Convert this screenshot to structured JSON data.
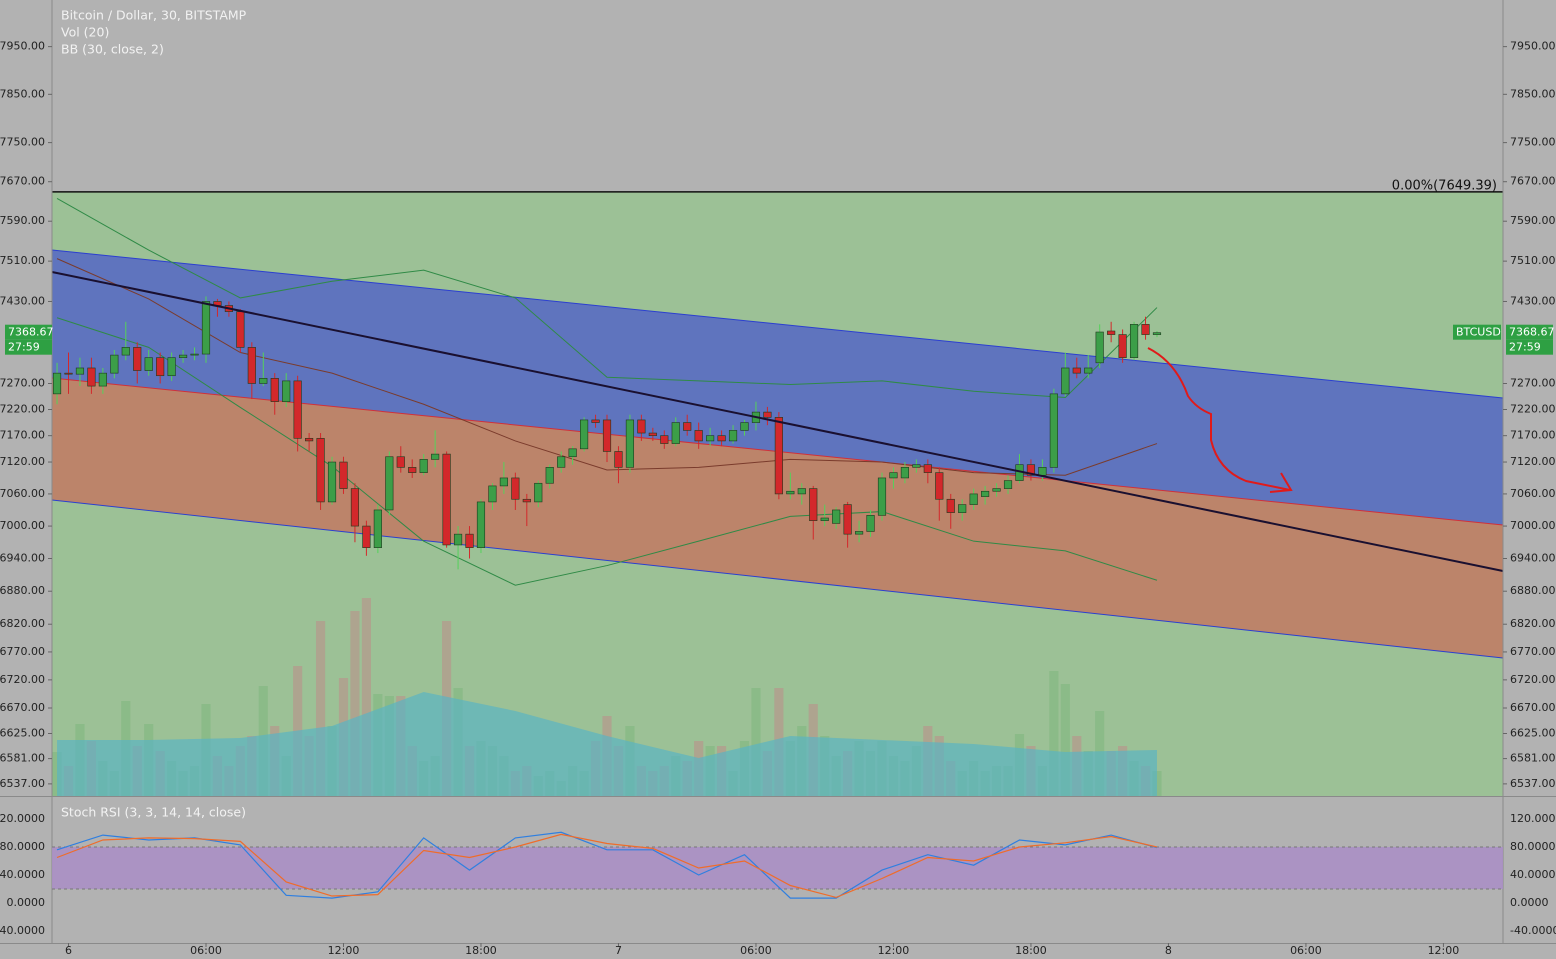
{
  "chart_data": [
    {
      "type": "candlestick",
      "title": "Bitcoin / Dollar, 30, BITSTAMP",
      "indicators": [
        "Vol (20)",
        "BB (30, close, 2)"
      ],
      "log": true,
      "ylim": [
        6516,
        8049
      ],
      "yticks": [
        {
          "value": 7950,
          "label": "7950.00"
        },
        {
          "value": 7850,
          "label": "7850.00"
        },
        {
          "value": 7750,
          "label": "7750.00"
        },
        {
          "value": 7670,
          "label": "7670.00"
        },
        {
          "value": 7590,
          "label": "7590.00"
        },
        {
          "value": 7510,
          "label": "7510.00"
        },
        {
          "value": 7430,
          "label": "7430.00"
        },
        {
          "value": 7270,
          "label": "7270.00"
        },
        {
          "value": 7220,
          "label": "7220.00"
        },
        {
          "value": 7170,
          "label": "7170.00"
        },
        {
          "value": 7120,
          "label": "7120.00"
        },
        {
          "value": 7060,
          "label": "7060.00"
        },
        {
          "value": 7000,
          "label": "7000.00"
        },
        {
          "value": 6940,
          "label": "6940.00"
        },
        {
          "value": 6880,
          "label": "6880.00"
        },
        {
          "value": 6820,
          "label": "6820.00"
        },
        {
          "value": 6770,
          "label": "6770.00"
        },
        {
          "value": 6720,
          "label": "6720.00"
        },
        {
          "value": 6670,
          "label": "6670.00"
        },
        {
          "value": 6625,
          "label": "6625.00"
        },
        {
          "value": 6581,
          "label": "6581.00"
        },
        {
          "value": 6537,
          "label": "6537.00"
        }
      ],
      "xlim": [
        -0.44,
        126.2
      ],
      "xticks": [
        {
          "value": 1,
          "label": "6"
        },
        {
          "value": 13,
          "label": "06:00"
        },
        {
          "value": 25,
          "label": "12:00"
        },
        {
          "value": 37,
          "label": "18:00"
        },
        {
          "value": 49,
          "label": "7"
        },
        {
          "value": 61,
          "label": "06:00"
        },
        {
          "value": 73,
          "label": "12:00"
        },
        {
          "value": 85,
          "label": "18:00"
        },
        {
          "value": 97,
          "label": "8"
        },
        {
          "value": 109,
          "label": "06:00"
        },
        {
          "value": 121,
          "label": "12:00"
        }
      ],
      "up_color": "#3c9e48",
      "down_color": "#d3282b",
      "candles": [
        [
          7250,
          7310,
          7230,
          7290
        ],
        [
          7290,
          7330,
          7250,
          7288
        ],
        [
          7288,
          7320,
          7265,
          7300
        ],
        [
          7300,
          7320,
          7250,
          7265
        ],
        [
          7265,
          7300,
          7250,
          7290
        ],
        [
          7290,
          7335,
          7280,
          7325
        ],
        [
          7325,
          7390,
          7315,
          7340
        ],
        [
          7340,
          7350,
          7270,
          7295
        ],
        [
          7295,
          7335,
          7285,
          7320
        ],
        [
          7320,
          7330,
          7270,
          7285
        ],
        [
          7285,
          7330,
          7275,
          7320
        ],
        [
          7320,
          7335,
          7310,
          7325
        ],
        [
          7325,
          7340,
          7315,
          7327
        ],
        [
          7327,
          7440,
          7310,
          7430
        ],
        [
          7430,
          7435,
          7400,
          7422
        ],
        [
          7422,
          7430,
          7400,
          7410
        ],
        [
          7410,
          7415,
          7330,
          7340
        ],
        [
          7340,
          7350,
          7240,
          7270
        ],
        [
          7270,
          7330,
          7265,
          7280
        ],
        [
          7280,
          7290,
          7210,
          7235
        ],
        [
          7235,
          7290,
          7225,
          7275
        ],
        [
          7275,
          7285,
          7140,
          7165
        ],
        [
          7165,
          7175,
          7140,
          7160
        ],
        [
          7165,
          7175,
          7030,
          7045
        ],
        [
          7045,
          7130,
          7040,
          7120
        ],
        [
          7120,
          7130,
          7060,
          7070
        ],
        [
          7070,
          7080,
          6970,
          7000
        ],
        [
          7000,
          7010,
          6945,
          6960
        ],
        [
          6960,
          7040,
          6950,
          7030
        ],
        [
          7030,
          7140,
          7020,
          7130
        ],
        [
          7130,
          7150,
          7100,
          7110
        ],
        [
          7110,
          7125,
          7090,
          7100
        ],
        [
          7100,
          7135,
          7095,
          7125
        ],
        [
          7125,
          7180,
          7110,
          7135
        ],
        [
          7135,
          7140,
          6960,
          6965
        ],
        [
          6965,
          7000,
          6920,
          6985
        ],
        [
          6985,
          7000,
          6940,
          6960
        ],
        [
          6960,
          7050,
          6950,
          7045
        ],
        [
          7045,
          7080,
          7030,
          7075
        ],
        [
          7075,
          7120,
          7060,
          7090
        ],
        [
          7090,
          7100,
          7030,
          7050
        ],
        [
          7050,
          7060,
          7000,
          7045
        ],
        [
          7045,
          7085,
          7035,
          7080
        ],
        [
          7080,
          7115,
          7070,
          7110
        ],
        [
          7110,
          7140,
          7100,
          7130
        ],
        [
          7130,
          7150,
          7115,
          7145
        ],
        [
          7145,
          7205,
          7140,
          7200
        ],
        [
          7200,
          7210,
          7185,
          7195
        ],
        [
          7200,
          7210,
          7120,
          7140
        ],
        [
          7140,
          7150,
          7080,
          7110
        ],
        [
          7110,
          7210,
          7100,
          7200
        ],
        [
          7200,
          7210,
          7160,
          7175
        ],
        [
          7175,
          7185,
          7160,
          7170
        ],
        [
          7170,
          7180,
          7145,
          7155
        ],
        [
          7155,
          7205,
          7150,
          7195
        ],
        [
          7195,
          7210,
          7170,
          7180
        ],
        [
          7180,
          7195,
          7145,
          7160
        ],
        [
          7160,
          7185,
          7150,
          7170
        ],
        [
          7170,
          7180,
          7150,
          7160
        ],
        [
          7160,
          7190,
          7155,
          7180
        ],
        [
          7180,
          7200,
          7170,
          7195
        ],
        [
          7195,
          7235,
          7180,
          7215
        ],
        [
          7215,
          7225,
          7190,
          7205
        ],
        [
          7205,
          7215,
          7050,
          7060
        ],
        [
          7060,
          7100,
          7050,
          7065
        ],
        [
          7060,
          7080,
          7040,
          7070
        ],
        [
          7070,
          7075,
          6975,
          7010
        ],
        [
          7010,
          7040,
          7000,
          7015
        ],
        [
          7005,
          7035,
          6995,
          7030
        ],
        [
          7040,
          7045,
          6960,
          6985
        ],
        [
          6985,
          7010,
          6970,
          6990
        ],
        [
          6990,
          7030,
          6980,
          7020
        ],
        [
          7020,
          7100,
          7010,
          7090
        ],
        [
          7090,
          7110,
          7070,
          7100
        ],
        [
          7090,
          7120,
          7080,
          7110
        ],
        [
          7110,
          7125,
          7100,
          7115
        ],
        [
          7115,
          7125,
          7080,
          7100
        ],
        [
          7100,
          7110,
          7010,
          7050
        ],
        [
          7050,
          7060,
          6995,
          7025
        ],
        [
          7025,
          7050,
          7010,
          7040
        ],
        [
          7040,
          7070,
          7030,
          7060
        ],
        [
          7055,
          7075,
          7040,
          7065
        ],
        [
          7065,
          7080,
          7055,
          7070
        ],
        [
          7070,
          7095,
          7060,
          7085
        ],
        [
          7085,
          7135,
          7080,
          7115
        ],
        [
          7115,
          7125,
          7085,
          7095
        ],
        [
          7095,
          7125,
          7085,
          7110
        ],
        [
          7110,
          7260,
          7100,
          7250
        ],
        [
          7250,
          7330,
          7245,
          7300
        ],
        [
          7300,
          7320,
          7280,
          7290
        ],
        [
          7290,
          7325,
          7280,
          7300
        ],
        [
          7310,
          7385,
          7300,
          7370
        ],
        [
          7372,
          7390,
          7350,
          7365
        ],
        [
          7365,
          7375,
          7310,
          7320
        ],
        [
          7320,
          7390,
          7315,
          7385
        ],
        [
          7385,
          7400,
          7355,
          7365
        ],
        [
          7365,
          7372,
          7360,
          7368.67
        ]
      ],
      "volume": {
        "up_color": "#86b883",
        "down_color": "#b49a8c",
        "values": [
          44,
          30,
          72,
          55,
          35,
          25,
          95,
          50,
          72,
          45,
          35,
          25,
          30,
          92,
          40,
          30,
          50,
          60,
          110,
          70,
          40,
          130,
          60,
          175,
          70,
          118,
          185,
          198,
          102,
          100,
          100,
          50,
          35,
          40,
          175,
          108,
          50,
          55,
          50,
          40,
          25,
          30,
          20,
          25,
          15,
          30,
          25,
          55,
          80,
          50,
          70,
          30,
          25,
          30,
          40,
          35,
          55,
          50,
          50,
          25,
          55,
          108,
          45,
          108,
          55,
          70,
          92,
          60,
          40,
          45,
          55,
          45,
          55,
          40,
          35,
          50,
          70,
          60,
          35,
          25,
          35,
          25,
          30,
          30,
          62,
          50,
          30,
          125,
          112,
          60,
          45,
          85,
          45,
          50,
          35,
          30,
          25
        ],
        "ma": {
          "color": "#5bb3c2",
          "x": [
            0,
            8,
            16,
            24,
            32,
            40,
            48,
            56,
            64,
            72,
            80,
            88,
            96
          ],
          "values": [
            56,
            56,
            58,
            70,
            104,
            85,
            60,
            38,
            60,
            56,
            52,
            44,
            46
          ]
        }
      },
      "bollinger": {
        "x": [
          0,
          8,
          16,
          24,
          32,
          40,
          48,
          56,
          64,
          72,
          80,
          88,
          96
        ],
        "series": [
          {
            "color": "#2f8a46",
            "values": [
              7636,
              7532,
              7437,
              7470,
              7492,
              7437,
              7282,
              7275,
              7268,
              7275,
              7255,
              7243,
              7418
            ]
          },
          {
            "color": "#7a3b2c",
            "values": [
              7515,
              7435,
              7330,
              7290,
              7230,
              7160,
              7105,
              7110,
              7125,
              7120,
              7100,
              7095,
              7155
            ]
          },
          {
            "color": "#2f8a46",
            "values": [
              7398,
              7340,
              7224,
              7112,
              6972,
              6891,
              6927,
              6972,
              7018,
              7027,
              6972,
              6954,
              6900
            ]
          }
        ]
      },
      "fib_level": {
        "value": 7649.39,
        "label": "0.00%(7649.39)"
      },
      "last_price_tag": {
        "symbol": "BTCUSD",
        "countdown": "27:59"
      }
    },
    {
      "type": "line",
      "title": "Stoch RSI (3, 3, 14, 14, close)",
      "ylim": [
        -57.1,
        151.4
      ],
      "yticks": [
        {
          "value": 120,
          "label": "120.0000"
        },
        {
          "value": 80,
          "label": "80.0000"
        },
        {
          "value": 40,
          "label": "40.0000"
        },
        {
          "value": 0,
          "label": "0.0000"
        },
        {
          "value": -40,
          "label": "-40.0000"
        }
      ],
      "bands": [
        20,
        80
      ],
      "band_color": "#a98dc6",
      "x": [
        0,
        4,
        8,
        12,
        16,
        20,
        24,
        28,
        32,
        36,
        40,
        44,
        48,
        52,
        56,
        60,
        64,
        68,
        72,
        76,
        80,
        84,
        88,
        92,
        96
      ],
      "series": [
        {
          "color": "#2f7fe0",
          "values": [
            76,
            97,
            90,
            93,
            83,
            11,
            7,
            16,
            93,
            47,
            93,
            101,
            76,
            76,
            40,
            69,
            7,
            7,
            47,
            69,
            54,
            90,
            83,
            97,
            79
          ]
        },
        {
          "color": "#ef6c2a",
          "values": [
            65,
            90,
            93,
            92,
            88,
            30,
            10,
            12,
            75,
            65,
            80,
            98,
            85,
            78,
            50,
            60,
            25,
            8,
            35,
            65,
            60,
            80,
            86,
            95,
            80
          ]
        }
      ]
    }
  ]
}
